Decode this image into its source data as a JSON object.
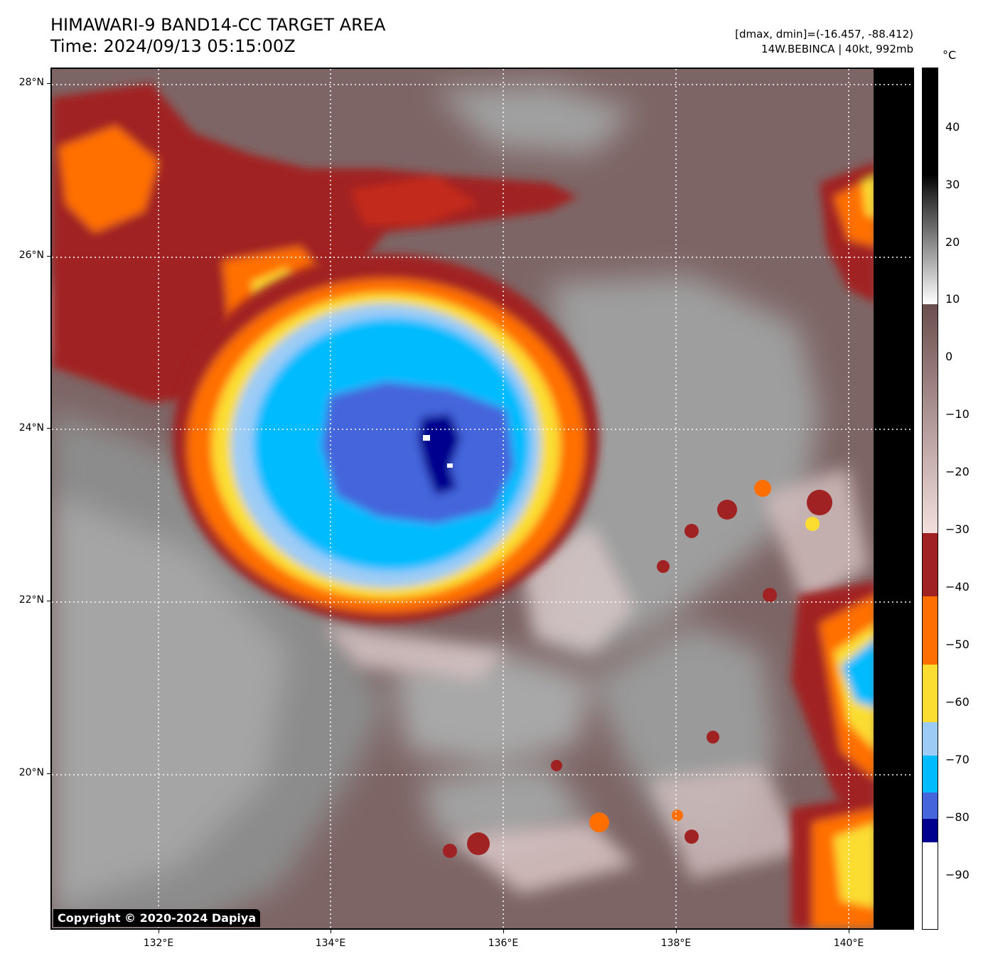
{
  "header": {
    "title_line1": "HIMAWARI-9 BAND14-CC TARGET AREA",
    "title_line2": "Time: 2024/09/13 05:15:00Z",
    "range_text": "[dmax, dmin]=(-16.457, -88.412)",
    "storm_text": "14W.BEBINCA | 40kt, 992mb"
  },
  "axes": {
    "lat_labels": [
      "28°N",
      "26°N",
      "24°N",
      "22°N",
      "20°N"
    ],
    "lon_labels": [
      "132°E",
      "134°E",
      "136°E",
      "138°E",
      "140°E"
    ]
  },
  "colorbar": {
    "unit": "°C",
    "tick_labels": [
      "40",
      "30",
      "20",
      "10",
      "0",
      "−10",
      "−20",
      "−30",
      "−40",
      "−50",
      "−60",
      "−70",
      "−80",
      "−90"
    ]
  },
  "copyright": "Copyright © 2020-2024 Dapiya",
  "palette": {
    "warm_ground": "#7a6262",
    "cloud_gray": "#9a9a9a",
    "cloud_light": "#d9c9c9",
    "dark_red": "#a12222",
    "orange": "#ff6f00",
    "yellow": "#fbdd32",
    "light_blue": "#9cccf6",
    "cyan": "#00bcff",
    "royal_blue": "#4565dc",
    "navy": "#00008e",
    "white": "#ffffff",
    "black": "#000000"
  }
}
